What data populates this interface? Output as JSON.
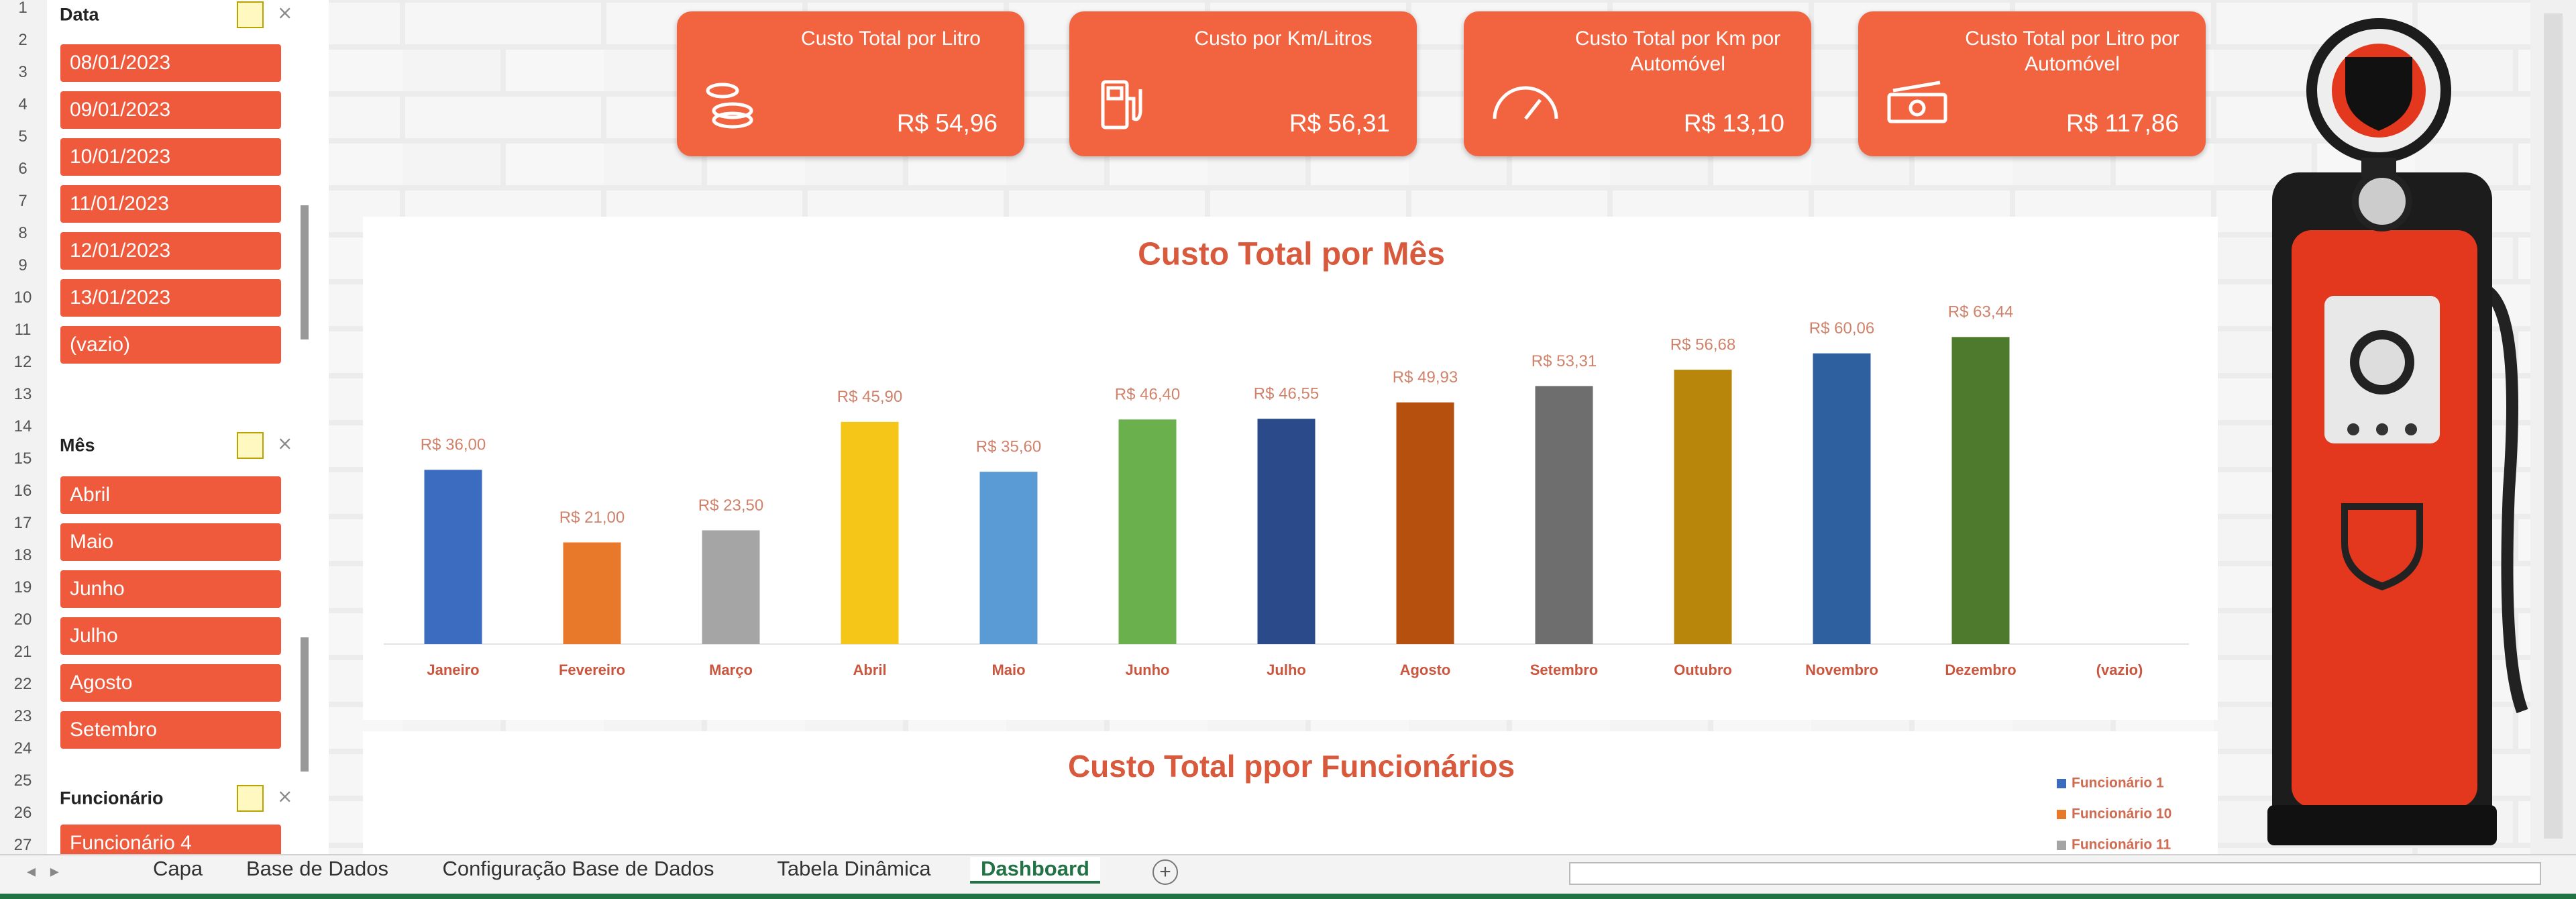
{
  "row_numbers": [
    1,
    2,
    3,
    4,
    5,
    6,
    7,
    8,
    9,
    10,
    11,
    12,
    13,
    14,
    15,
    16,
    17,
    18,
    19,
    20,
    21,
    22,
    23,
    24,
    25,
    26,
    27
  ],
  "slicers": [
    {
      "title": "Data",
      "items": [
        "08/01/2023",
        "09/01/2023",
        "10/01/2023",
        "11/01/2023",
        "12/01/2023",
        "13/01/2023",
        "(vazio)"
      ]
    },
    {
      "title": "Mês",
      "items": [
        "Abril",
        "Maio",
        "Junho",
        "Julho",
        "Agosto",
        "Setembro"
      ]
    },
    {
      "title": "Funcionário",
      "items": [
        "Funcionário 4"
      ]
    }
  ],
  "kpis": [
    {
      "title": "Custo Total por Litro",
      "value": "R$ 54,96"
    },
    {
      "title": "Custo por Km/Litros",
      "value": "R$ 56,31"
    },
    {
      "title": "Custo Total por Km por Automóvel",
      "value": "R$ 13,10"
    },
    {
      "title": "Custo Total por Litro por Automóvel",
      "value": "R$ 117,86"
    }
  ],
  "chart_data": {
    "type": "bar",
    "title": "Custo Total por Mês",
    "categories": [
      "Janeiro",
      "Fevereiro",
      "Março",
      "Abril",
      "Maio",
      "Junho",
      "Julho",
      "Agosto",
      "Setembro",
      "Outubro",
      "Novembro",
      "Dezembro",
      "(vazio)"
    ],
    "values": [
      36.0,
      21.0,
      23.5,
      45.9,
      35.6,
      46.4,
      46.55,
      49.93,
      53.31,
      56.68,
      60.06,
      63.44,
      null
    ],
    "value_labels": [
      "R$ 36,00",
      "R$ 21,00",
      "R$ 23,50",
      "R$ 45,90",
      "R$ 35,60",
      "R$ 46,40",
      "R$ 46,55",
      "R$ 49,93",
      "R$ 53,31",
      "R$ 56,68",
      "R$ 60,06",
      "R$ 63,44",
      null
    ],
    "colors": [
      "#3b6cc0",
      "#e8782a",
      "#a5a5a5",
      "#f5c518",
      "#5b9bd5",
      "#6ab04c",
      "#2b4a8a",
      "#b5500f",
      "#6e6e6e",
      "#b8860b",
      "#2e5f9e",
      "#4e7a2e",
      null
    ],
    "ylim": [
      0,
      70
    ]
  },
  "employee_chart": {
    "title": "Custo Total ppor Funcionários",
    "legend": [
      {
        "name": "Funcionário 1",
        "color": "#3b6cc0"
      },
      {
        "name": "Funcionário 10",
        "color": "#e8782a"
      },
      {
        "name": "Funcionário 11",
        "color": "#a5a5a5"
      }
    ]
  },
  "sheet_tabs": [
    "Capa",
    "Base de Dados",
    "Configuração Base de Dados",
    "Tabela Dinâmica",
    "Dashboard"
  ],
  "active_tab": "Dashboard"
}
